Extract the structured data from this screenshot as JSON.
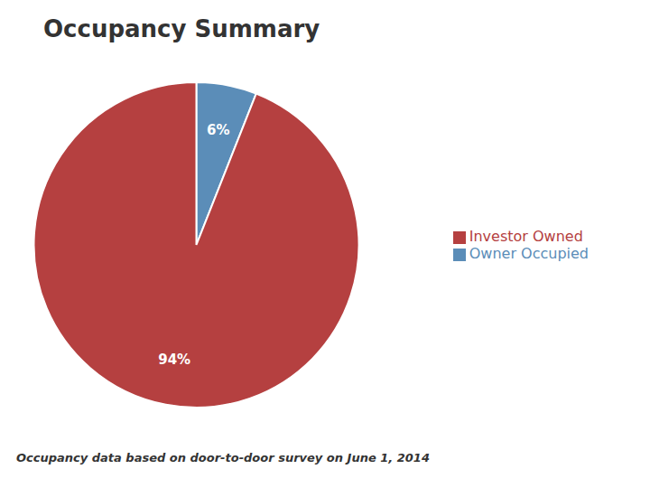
{
  "chart_data": {
    "type": "pie",
    "title": "Occupancy Summary",
    "categories": [
      "Owner Occupied",
      "Investor Owned"
    ],
    "values": [
      6,
      94
    ],
    "value_labels": [
      "6%",
      "94%"
    ],
    "colors": [
      "#5b8db8",
      "#b54040"
    ],
    "data_labels": true,
    "legend": "right",
    "annotations": [
      "Occupancy data based on door-to-door survey on June 1, 2014"
    ]
  }
}
